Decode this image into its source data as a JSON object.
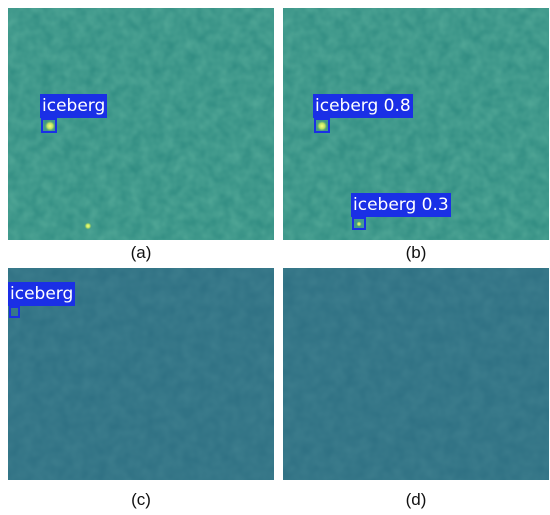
{
  "panels": [
    {
      "caption": "(a)",
      "base_color": "#2e8a80",
      "detections": [
        {
          "label": "iceberg"
        }
      ]
    },
    {
      "caption": "(b)",
      "base_color": "#2e8a80",
      "detections": [
        {
          "label": "iceberg 0.8"
        },
        {
          "label": "iceberg 0.3"
        }
      ]
    },
    {
      "caption": "(c)",
      "base_color": "#2d6f82",
      "detections": [
        {
          "label": "iceberg"
        }
      ]
    },
    {
      "caption": "(d)",
      "base_color": "#2d6f82",
      "detections": []
    }
  ],
  "colors": {
    "box": "#1a2fe6",
    "hotspot": "#e8f060"
  }
}
